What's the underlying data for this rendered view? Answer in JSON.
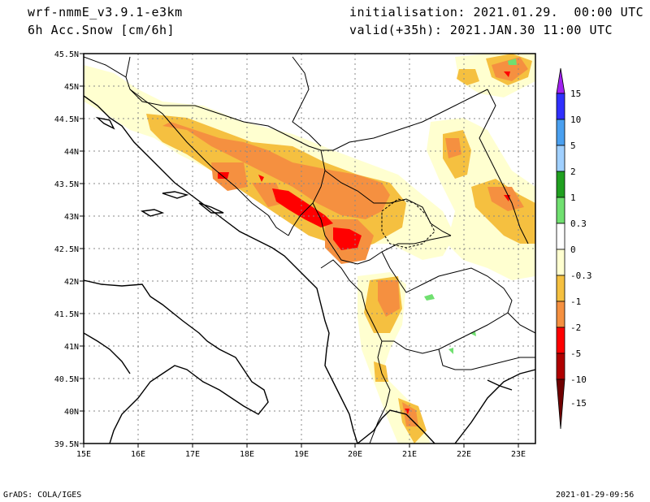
{
  "header": {
    "model": "wrf-nmmE_v3.9.1-e3km",
    "field": "6h Acc.Snow [cm/6h]",
    "init": "initialisation: 2021.01.29.  00:00 UTC",
    "valid": "valid(+35h): 2021.JAN.30 11:00 UTC"
  },
  "map": {
    "lat_labels": [
      "45.5N",
      "45N",
      "44.5N",
      "44N",
      "43.5N",
      "43N",
      "42.5N",
      "42N",
      "41.5N",
      "41N",
      "40.5N",
      "40N",
      "39.5N"
    ],
    "lon_labels": [
      "15E",
      "16E",
      "17E",
      "18E",
      "19E",
      "20E",
      "21E",
      "22E",
      "23E"
    ],
    "lat_range": [
      39.5,
      45.5
    ],
    "lon_range": [
      15,
      23.3
    ]
  },
  "colorbar": {
    "labels": [
      "15",
      "10",
      "5",
      "2",
      "1",
      "0.3",
      "0",
      "-0.3",
      "-1",
      "-2",
      "-5",
      "-10",
      "-15"
    ],
    "colors": [
      "#a020f0",
      "#3030ff",
      "#4aa0f0",
      "#a0d0ff",
      "#20a020",
      "#70e070",
      "#ffffff",
      "#ffffd0",
      "#f5c040",
      "#f59040",
      "#ff0000",
      "#b00000",
      "#700000"
    ]
  },
  "footer": {
    "left": "GrADS: COLA/IGES",
    "right": "2021-01-29-09:56"
  }
}
